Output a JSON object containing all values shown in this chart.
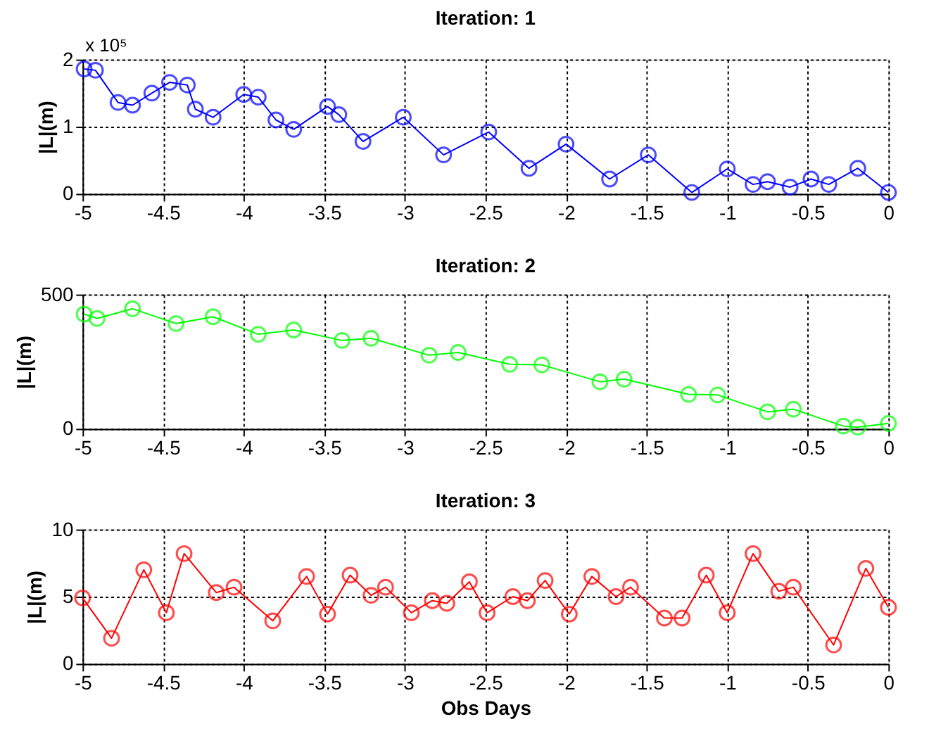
{
  "chart_data": [
    {
      "type": "line",
      "title": "Iteration: 1",
      "ylabel": "|L|(m)",
      "annotations": [
        "x 10⁵"
      ],
      "xlim": [
        -5,
        0
      ],
      "xticks": [
        -5,
        -4.5,
        -4,
        -3.5,
        -3,
        -2.5,
        -2,
        -1.5,
        -1,
        -0.5,
        0
      ],
      "ylim": [
        0,
        2
      ],
      "yticks": [
        0,
        1,
        2
      ],
      "grid": true,
      "marker": "circle",
      "line_style": "solid",
      "x": [
        -4.99,
        -4.92,
        -4.78,
        -4.69,
        -4.57,
        -4.46,
        -4.35,
        -4.3,
        -4.19,
        -4.0,
        -3.91,
        -3.8,
        -3.69,
        -3.48,
        -3.41,
        -3.26,
        -3.01,
        -2.76,
        -2.48,
        -2.23,
        -2.0,
        -1.73,
        -1.49,
        -1.22,
        -1.0,
        -0.84,
        -0.75,
        -0.61,
        -0.48,
        -0.37,
        -0.19,
        0
      ],
      "series": [
        {
          "color": "#0000ff",
          "values": [
            1.86,
            1.84,
            1.36,
            1.32,
            1.5,
            1.66,
            1.62,
            1.26,
            1.14,
            1.48,
            1.44,
            1.1,
            0.96,
            1.3,
            1.18,
            0.78,
            1.14,
            0.58,
            0.92,
            0.38,
            0.74,
            0.22,
            0.58,
            0.02,
            0.37,
            0.14,
            0.18,
            0.1,
            0.22,
            0.14,
            0.38,
            0.02
          ]
        }
      ]
    },
    {
      "type": "line",
      "title": "Iteration: 2",
      "ylabel": "|L|(m)",
      "xlim": [
        -5,
        0
      ],
      "xticks": [
        -5,
        -4.5,
        -4,
        -3.5,
        -3,
        -2.5,
        -2,
        -1.5,
        -1,
        -0.5,
        0
      ],
      "ylim": [
        0,
        500
      ],
      "yticks": [
        0,
        500
      ],
      "grid": true,
      "marker": "circle",
      "line_style": "solid",
      "x": [
        -4.99,
        -4.91,
        -4.69,
        -4.42,
        -4.19,
        -3.91,
        -3.69,
        -3.39,
        -3.21,
        -2.85,
        -2.67,
        -2.35,
        -2.15,
        -1.79,
        -1.64,
        -1.24,
        -1.06,
        -0.75,
        -0.59,
        -0.28,
        -0.19,
        0
      ],
      "series": [
        {
          "color": "#00ff00",
          "values": [
            427,
            411,
            447,
            392,
            417,
            352,
            368,
            329,
            337,
            274,
            284,
            240,
            238,
            175,
            185,
            128,
            126,
            63,
            73,
            10,
            6,
            20
          ]
        }
      ]
    },
    {
      "type": "line",
      "title": "Iteration: 3",
      "ylabel": "|L|(m)",
      "xlabel": "Obs Days",
      "xlim": [
        -5,
        0
      ],
      "xticks": [
        -5,
        -4.5,
        -4,
        -3.5,
        -3,
        -2.5,
        -2,
        -1.5,
        -1,
        -0.5,
        0
      ],
      "ylim": [
        0,
        10
      ],
      "yticks": [
        0,
        5,
        10
      ],
      "grid": true,
      "marker": "circle",
      "line_style": "solid",
      "x": [
        -5,
        -4.82,
        -4.62,
        -4.48,
        -4.37,
        -4.17,
        -4.06,
        -3.82,
        -3.61,
        -3.48,
        -3.34,
        -3.21,
        -3.12,
        -2.96,
        -2.83,
        -2.74,
        -2.6,
        -2.49,
        -2.33,
        -2.24,
        -2.13,
        -1.98,
        -1.84,
        -1.69,
        -1.6,
        -1.39,
        -1.28,
        -1.13,
        -1.0,
        -0.84,
        -0.68,
        -0.59,
        -0.34,
        -0.14,
        0
      ],
      "series": [
        {
          "color": "#ff0000",
          "values": [
            4.9,
            1.9,
            7.0,
            3.8,
            8.2,
            5.3,
            5.7,
            3.2,
            6.5,
            3.7,
            6.6,
            5.1,
            5.7,
            3.8,
            4.7,
            4.5,
            6.1,
            3.8,
            5.0,
            4.7,
            6.2,
            3.7,
            6.5,
            5.0,
            5.7,
            3.4,
            3.4,
            6.6,
            3.8,
            8.2,
            5.4,
            5.7,
            1.4,
            7.1,
            4.2
          ]
        }
      ]
    }
  ]
}
